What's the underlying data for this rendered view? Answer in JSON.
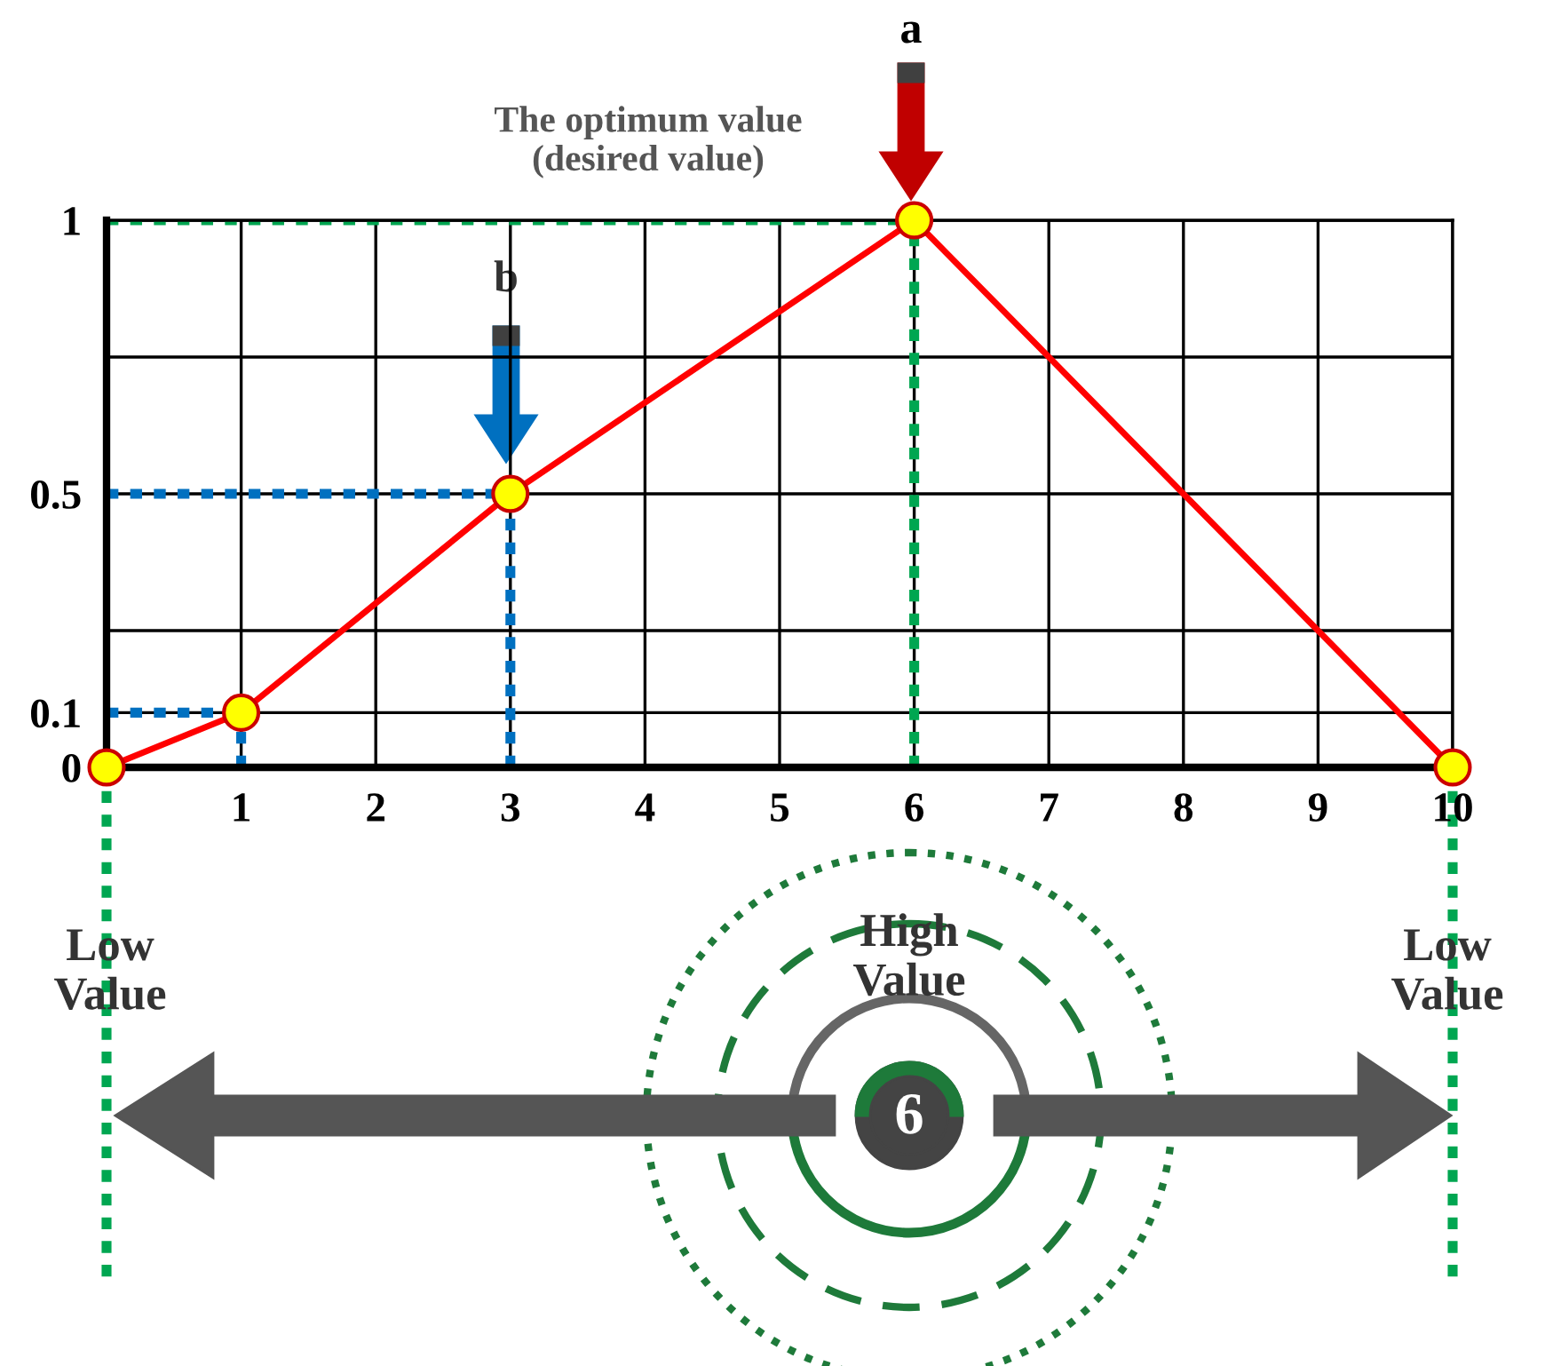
{
  "chart_data": {
    "type": "line",
    "x": [
      0,
      1,
      3,
      6,
      10
    ],
    "series": [
      {
        "color": "#ff0000",
        "values": [
          0,
          0.1,
          0.5,
          1,
          0
        ]
      }
    ],
    "marker": "circle",
    "line_style": "solid",
    "xlim": [
      0,
      10
    ],
    "xticks": [
      {
        "value": 0,
        "label": null
      },
      1,
      2,
      3,
      4,
      5,
      6,
      7,
      8,
      9,
      10
    ],
    "ylim": [
      0,
      1
    ],
    "yticks": [
      0,
      0.1,
      {
        "value": 0.25,
        "label": null
      },
      0.5,
      {
        "value": 0.75,
        "label": null
      },
      1
    ],
    "grid": true,
    "ref_lines": [
      {
        "axis": "x",
        "value": 1,
        "color": "#0070c0",
        "line_style": "dotted"
      },
      {
        "axis": "y",
        "value": 0.1,
        "color": "#0070c0",
        "line_style": "dotted"
      },
      {
        "axis": "x",
        "value": 3,
        "color": "#0070c0",
        "line_style": "dotted"
      },
      {
        "axis": "y",
        "value": 0.5,
        "color": "#0070c0",
        "line_style": "dotted"
      },
      {
        "axis": "x",
        "value": 6,
        "color": "#00a651",
        "line_style": "dotted"
      },
      {
        "axis": "y",
        "value": 1,
        "color": "#00a651",
        "line_style": "dotted"
      }
    ],
    "annotations": [
      "a",
      "b",
      "The optimum value\n(desired value)",
      "Low\nValue",
      "High\nValue",
      "Low\nValue",
      "6"
    ]
  }
}
